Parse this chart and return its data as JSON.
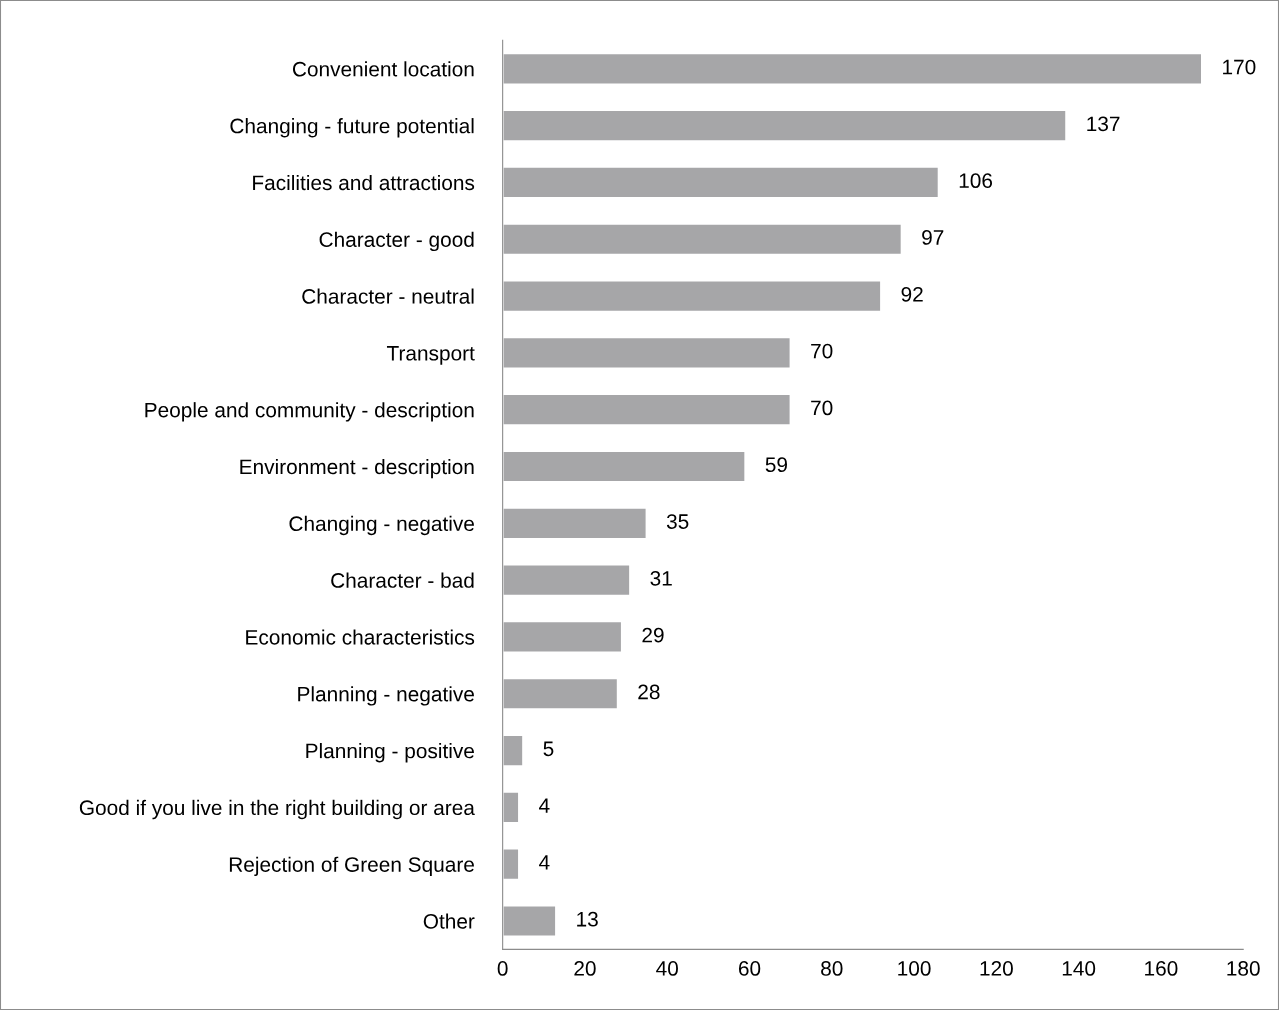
{
  "chart_data": {
    "type": "bar",
    "orientation": "horizontal",
    "categories": [
      "Convenient location",
      "Changing - future potential",
      "Facilities and attractions",
      "Character - good",
      "Character - neutral",
      "Transport",
      "People and community - description",
      "Environment - description",
      "Changing - negative",
      "Character - bad",
      "Economic characteristics",
      "Planning - negative",
      "Planning - positive",
      "Good if you live in the right building or area",
      "Rejection of Green Square",
      "Other"
    ],
    "values": [
      170,
      137,
      106,
      97,
      92,
      70,
      70,
      59,
      35,
      31,
      29,
      28,
      5,
      4,
      4,
      13
    ],
    "color": "#a6a6a8",
    "xlim": [
      0,
      180
    ],
    "xticks": [
      0,
      20,
      40,
      60,
      80,
      100,
      120,
      140,
      160,
      180
    ],
    "data_labels": true,
    "grid": false,
    "legend": false
  }
}
